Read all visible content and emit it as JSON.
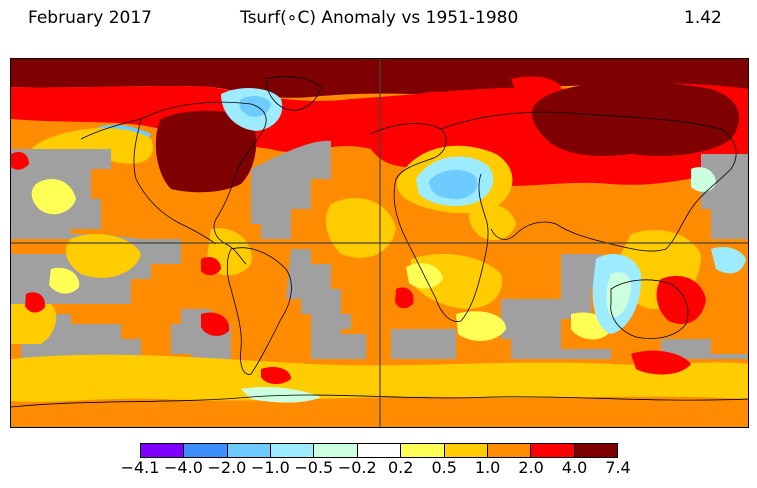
{
  "header": {
    "period": "February 2017",
    "title": "Tsurf(∘C) Anomaly vs 1951-1980",
    "global_mean": "1.42"
  },
  "legend": {
    "labels": [
      "−4.1",
      "−4.0",
      "−2.0",
      "−1.0",
      "−0.5",
      "−0.2",
      "0.2",
      "0.5",
      "1.0",
      "2.0",
      "4.0",
      "7.4"
    ],
    "colors": [
      "#7f00ff",
      "#3d8eff",
      "#6ecbff",
      "#9cebff",
      "#ccffdd",
      "#ffffff",
      "#ffff55",
      "#ffcc00",
      "#ff8c00",
      "#ff0000",
      "#7f0000"
    ]
  },
  "map": {
    "no_data_color": "#a0a0a0",
    "coastline_color": "#000000",
    "projection": "equirectangular"
  }
}
